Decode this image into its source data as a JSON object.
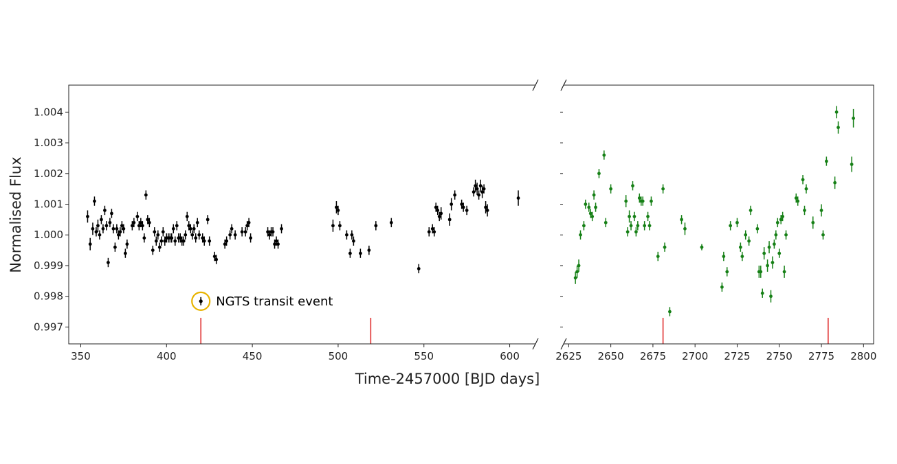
{
  "chart_data": {
    "type": "scatter",
    "xlabel": "Time-2457000 [BJD days]",
    "ylabel": "Normalised Flux",
    "ylim": [
      0.99645,
      1.00488
    ],
    "yticks": [
      "0.997",
      "0.998",
      "0.999",
      "1.000",
      "1.001",
      "1.002",
      "1.003",
      "1.004"
    ],
    "broken_x_axis": true,
    "grid": false,
    "panels": [
      {
        "xlim": [
          343,
          615
        ],
        "xticks": [
          "350",
          "400",
          "450",
          "500",
          "550",
          "600"
        ],
        "color": "#000000",
        "transit_markers_x": [
          420,
          519
        ],
        "points": [
          [
            354,
            1.0006,
            0.0004
          ],
          [
            355.5,
            0.9997,
            0.0004
          ],
          [
            357,
            1.0002,
            0.0004
          ],
          [
            358,
            1.0011,
            0.0003
          ],
          [
            359,
            1.0001,
            0.0003
          ],
          [
            360,
            1.0003,
            0.0004
          ],
          [
            361,
            1.0,
            0.0003
          ],
          [
            362,
            1.0005,
            0.0003
          ],
          [
            363,
            1.0002,
            0.0003
          ],
          [
            364,
            1.0008,
            0.0003
          ],
          [
            365,
            1.0003,
            0.0003
          ],
          [
            366,
            0.9991,
            0.0003
          ],
          [
            367,
            1.0004,
            0.0003
          ],
          [
            368,
            1.0007,
            0.0003
          ],
          [
            369,
            1.0002,
            0.0003
          ],
          [
            370,
            0.9996,
            0.0003
          ],
          [
            371,
            1.0002,
            0.0003
          ],
          [
            372,
            1.0,
            0.0003
          ],
          [
            373,
            1.0001,
            0.0003
          ],
          [
            374,
            1.0003,
            0.0003
          ],
          [
            375,
            1.0002,
            0.0003
          ],
          [
            376,
            0.9994,
            0.0003
          ],
          [
            377,
            0.9997,
            0.0003
          ],
          [
            380,
            1.0003,
            0.0003
          ],
          [
            381,
            1.0004,
            0.0003
          ],
          [
            383,
            1.0006,
            0.0003
          ],
          [
            384,
            1.0003,
            0.0003
          ],
          [
            385,
            1.0004,
            0.0003
          ],
          [
            386,
            1.0003,
            0.0003
          ],
          [
            387,
            0.9999,
            0.0003
          ],
          [
            388,
            1.0013,
            0.0003
          ],
          [
            389,
            1.0005,
            0.0003
          ],
          [
            390,
            1.0004,
            0.0003
          ],
          [
            392,
            0.9995,
            0.0003
          ],
          [
            393,
            1.0001,
            0.0003
          ],
          [
            394,
            0.9998,
            0.0003
          ],
          [
            395,
            1.0,
            0.0003
          ],
          [
            396,
            0.9996,
            0.0003
          ],
          [
            397,
            0.9998,
            0.0003
          ],
          [
            398,
            1.0001,
            0.0003
          ],
          [
            399,
            0.9998,
            0.0003
          ],
          [
            400,
            0.9999,
            0.0003
          ],
          [
            401,
            0.9999,
            0.0003
          ],
          [
            402,
            0.9999,
            0.0003
          ],
          [
            403,
            0.9999,
            0.0003
          ],
          [
            404,
            1.0002,
            0.0003
          ],
          [
            405,
            0.9998,
            0.0003
          ],
          [
            406,
            1.0003,
            0.0003
          ],
          [
            407,
            0.9999,
            0.0003
          ],
          [
            408,
            0.9999,
            0.0003
          ],
          [
            409,
            0.9998,
            0.0003
          ],
          [
            410,
            0.9998,
            0.0003
          ],
          [
            411,
            1.0,
            0.0003
          ],
          [
            412,
            1.0006,
            0.0003
          ],
          [
            413,
            1.0003,
            0.0003
          ],
          [
            414,
            1.0002,
            0.0003
          ],
          [
            415,
            1.0,
            0.0003
          ],
          [
            416,
            1.0002,
            0.0003
          ],
          [
            417,
            0.9999,
            0.0003
          ],
          [
            418,
            1.0004,
            0.0003
          ],
          [
            419,
            1.0,
            0.0003
          ],
          [
            421,
            0.9999,
            0.0003
          ],
          [
            422,
            0.9998,
            0.0003
          ],
          [
            424,
            1.0005,
            0.0003
          ],
          [
            425,
            0.9998,
            0.0003
          ],
          [
            428,
            0.9993,
            0.0003
          ],
          [
            429,
            0.9992,
            0.0003
          ],
          [
            434,
            0.9997,
            0.0003
          ],
          [
            435,
            0.9998,
            0.0003
          ],
          [
            437,
            1.0,
            0.0003
          ],
          [
            438,
            1.0002,
            0.0003
          ],
          [
            440,
            1.0,
            0.0003
          ],
          [
            444,
            1.0001,
            0.0003
          ],
          [
            446,
            1.0001,
            0.0003
          ],
          [
            447,
            1.0003,
            0.0003
          ],
          [
            448,
            1.0004,
            0.0003
          ],
          [
            449,
            0.9999,
            0.0003
          ],
          [
            459,
            1.0001,
            0.0003
          ],
          [
            460,
            1.0,
            0.0003
          ],
          [
            461,
            1.0001,
            0.0003
          ],
          [
            462,
            1.0001,
            0.0003
          ],
          [
            463,
            0.9997,
            0.0003
          ],
          [
            464,
            0.9998,
            0.0003
          ],
          [
            465,
            0.9997,
            0.0003
          ],
          [
            467,
            1.0002,
            0.0003
          ],
          [
            497,
            1.0003,
            0.0004
          ],
          [
            499,
            1.0009,
            0.0004
          ],
          [
            500,
            1.0008,
            0.0003
          ],
          [
            501,
            1.0003,
            0.0003
          ],
          [
            505,
            1.0,
            0.0003
          ],
          [
            507,
            0.9994,
            0.0003
          ],
          [
            508,
            1.0,
            0.0003
          ],
          [
            509,
            0.9998,
            0.0003
          ],
          [
            513,
            0.9994,
            0.0003
          ],
          [
            518,
            0.9995,
            0.0003
          ],
          [
            522,
            1.0003,
            0.0003
          ],
          [
            531,
            1.0004,
            0.0003
          ],
          [
            547,
            0.9989,
            0.0003
          ],
          [
            553,
            1.0001,
            0.0003
          ],
          [
            555,
            1.0002,
            0.0003
          ],
          [
            556,
            1.0001,
            0.0003
          ],
          [
            557,
            1.0009,
            0.0003
          ],
          [
            558,
            1.0008,
            0.0003
          ],
          [
            559,
            1.0006,
            0.0003
          ],
          [
            560,
            1.0007,
            0.0004
          ],
          [
            565,
            1.0005,
            0.0004
          ],
          [
            566,
            1.001,
            0.0004
          ],
          [
            568,
            1.0013,
            0.0003
          ],
          [
            572,
            1.001,
            0.0003
          ],
          [
            573,
            1.0009,
            0.0003
          ],
          [
            575,
            1.0008,
            0.0003
          ],
          [
            579,
            1.0014,
            0.0003
          ],
          [
            580,
            1.0016,
            0.0004
          ],
          [
            581,
            1.0015,
            0.0004
          ],
          [
            582,
            1.0013,
            0.0003
          ],
          [
            583,
            1.0016,
            0.0004
          ],
          [
            584,
            1.0014,
            0.0004
          ],
          [
            585,
            1.0015,
            0.0003
          ],
          [
            586,
            1.0009,
            0.0004
          ],
          [
            587,
            1.0008,
            0.0004
          ],
          [
            605,
            1.0012,
            0.0005
          ]
        ]
      },
      {
        "xlim": [
          2622,
          2806
        ],
        "xticks": [
          "2625",
          "2650",
          "2675",
          "2700",
          "2725",
          "2750",
          "2775",
          "2800"
        ],
        "color": "#168016",
        "transit_markers_x": [
          2681,
          2779
        ],
        "points": [
          [
            2629,
            0.9986,
            0.0004
          ],
          [
            2630,
            0.9988,
            0.0004
          ],
          [
            2631,
            0.999,
            0.0004
          ],
          [
            2632,
            1.0,
            0.0003
          ],
          [
            2634,
            1.0003,
            0.0003
          ],
          [
            2635,
            1.001,
            0.0003
          ],
          [
            2637,
            1.0009,
            0.0003
          ],
          [
            2638,
            1.0007,
            0.0003
          ],
          [
            2639,
            1.0006,
            0.0003
          ],
          [
            2640,
            1.0013,
            0.0003
          ],
          [
            2641,
            1.0009,
            0.0003
          ],
          [
            2643,
            1.002,
            0.0003
          ],
          [
            2646,
            1.0026,
            0.0003
          ],
          [
            2647,
            1.0004,
            0.0003
          ],
          [
            2650,
            1.0015,
            0.0003
          ],
          [
            2659,
            1.0011,
            0.0004
          ],
          [
            2660,
            1.0001,
            0.0003
          ],
          [
            2661,
            1.0006,
            0.0004
          ],
          [
            2662,
            1.0003,
            0.0003
          ],
          [
            2663,
            1.0016,
            0.0003
          ],
          [
            2664,
            1.0006,
            0.0003
          ],
          [
            2665,
            1.0001,
            0.0003
          ],
          [
            2666,
            1.0003,
            0.0003
          ],
          [
            2667,
            1.0012,
            0.0003
          ],
          [
            2668,
            1.0011,
            0.0003
          ],
          [
            2669,
            1.0011,
            0.0003
          ],
          [
            2670,
            1.0003,
            0.0003
          ],
          [
            2672,
            1.0006,
            0.0003
          ],
          [
            2673,
            1.0003,
            0.0003
          ],
          [
            2674,
            1.0011,
            0.0003
          ],
          [
            2678,
            0.9993,
            0.0003
          ],
          [
            2681,
            1.0015,
            0.0003
          ],
          [
            2682,
            0.9996,
            0.0003
          ],
          [
            2685,
            0.9975,
            0.0003
          ],
          [
            2692,
            1.0005,
            0.0003
          ],
          [
            2694,
            1.0002,
            0.0004
          ],
          [
            2704,
            0.9996,
            0.0002
          ],
          [
            2716,
            0.9983,
            0.0003
          ],
          [
            2717,
            0.9993,
            0.0003
          ],
          [
            2719,
            0.9988,
            0.0003
          ],
          [
            2721,
            1.0003,
            0.0003
          ],
          [
            2725,
            1.0004,
            0.0003
          ],
          [
            2727,
            0.9996,
            0.0003
          ],
          [
            2728,
            0.9993,
            0.0003
          ],
          [
            2730,
            1.0,
            0.0003
          ],
          [
            2732,
            0.9998,
            0.0003
          ],
          [
            2733,
            1.0008,
            0.0003
          ],
          [
            2737,
            1.0002,
            0.0003
          ],
          [
            2738,
            0.9988,
            0.0004
          ],
          [
            2739,
            0.9988,
            0.0004
          ],
          [
            2740,
            0.9981,
            0.0003
          ],
          [
            2741,
            0.9994,
            0.0004
          ],
          [
            2743,
            0.999,
            0.0004
          ],
          [
            2744,
            0.9996,
            0.0004
          ],
          [
            2745,
            0.998,
            0.0004
          ],
          [
            2746,
            0.9991,
            0.0004
          ],
          [
            2747,
            0.9997,
            0.0003
          ],
          [
            2748,
            1.0,
            0.0003
          ],
          [
            2749,
            1.0004,
            0.0003
          ],
          [
            2750,
            0.9994,
            0.0003
          ],
          [
            2751,
            1.0005,
            0.0003
          ],
          [
            2752,
            1.0006,
            0.0003
          ],
          [
            2753,
            0.9988,
            0.0004
          ],
          [
            2754,
            1.0,
            0.0003
          ],
          [
            2760,
            1.0012,
            0.0003
          ],
          [
            2761,
            1.0011,
            0.0003
          ],
          [
            2764,
            1.0018,
            0.0003
          ],
          [
            2765,
            1.0008,
            0.0003
          ],
          [
            2766,
            1.0015,
            0.0003
          ],
          [
            2770,
            1.0004,
            0.0004
          ],
          [
            2775,
            1.0008,
            0.0004
          ],
          [
            2776,
            1.0,
            0.0003
          ],
          [
            2778,
            1.0024,
            0.0003
          ],
          [
            2783,
            1.0017,
            0.0004
          ],
          [
            2784,
            1.004,
            0.0004
          ],
          [
            2785,
            1.0035,
            0.0004
          ],
          [
            2793,
            1.0023,
            0.0005
          ],
          [
            2794,
            1.0038,
            0.0006
          ]
        ]
      }
    ],
    "annotation": {
      "text": "NGTS transit event",
      "point": [
        420,
        0.99784
      ],
      "circle_color": "#e8b400"
    },
    "transit_marker_color": "#e03030"
  }
}
